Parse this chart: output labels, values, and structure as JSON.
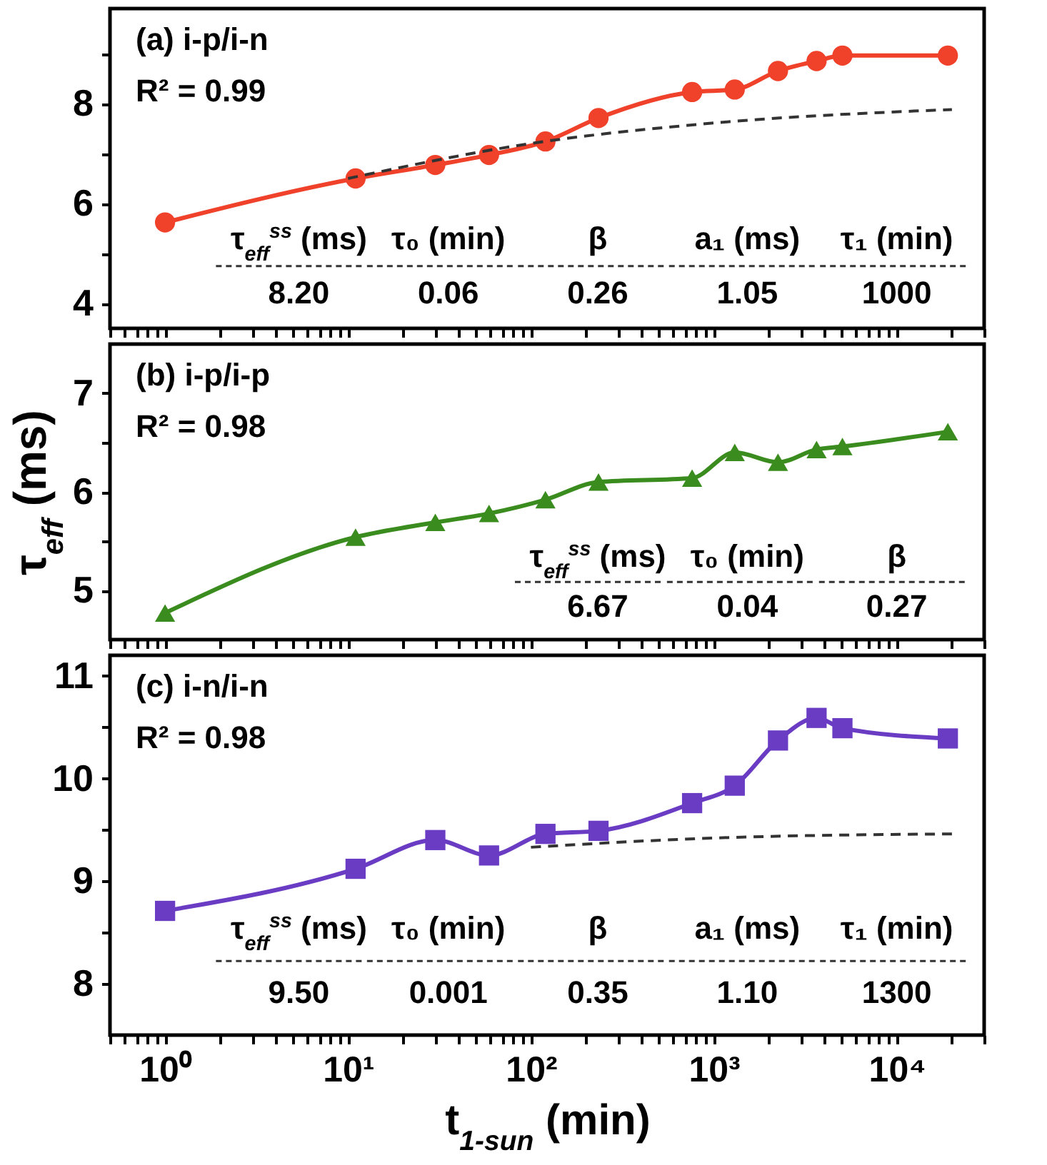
{
  "chart_data": [
    {
      "type": "line",
      "x": [
        1,
        11,
        30,
        59,
        120,
        234,
        760,
        1300,
        2240,
        3640,
        5040,
        19000
      ],
      "xlim": [
        0.5,
        30000
      ],
      "log": "x",
      "tick_labels": "y",
      "marker": "circle",
      "xticks": [
        {
          "value": 0.5,
          "label": null
        },
        {
          "value": 0.6,
          "label": null
        },
        {
          "value": 0.7,
          "label": null
        },
        {
          "value": 0.8,
          "label": null
        },
        {
          "value": 0.9,
          "label": null
        },
        {
          "value": 1,
          "label": null
        },
        {
          "value": 2,
          "label": null
        },
        {
          "value": 3,
          "label": null
        },
        {
          "value": 4,
          "label": null
        },
        {
          "value": 5,
          "label": null
        },
        {
          "value": 6,
          "label": null
        },
        {
          "value": 7,
          "label": null
        },
        {
          "value": 8,
          "label": null
        },
        {
          "value": 9,
          "label": null
        },
        {
          "value": 10,
          "label": null
        },
        {
          "value": 20,
          "label": null
        },
        {
          "value": 30,
          "label": null
        },
        {
          "value": 40,
          "label": null
        },
        {
          "value": 50,
          "label": null
        },
        {
          "value": 60,
          "label": null
        },
        {
          "value": 70,
          "label": null
        },
        {
          "value": 80,
          "label": null
        },
        {
          "value": 90,
          "label": null
        },
        {
          "value": 100,
          "label": null
        },
        {
          "value": 200,
          "label": null
        },
        {
          "value": 300,
          "label": null
        },
        {
          "value": 400,
          "label": null
        },
        {
          "value": 500,
          "label": null
        },
        {
          "value": 600,
          "label": null
        },
        {
          "value": 700,
          "label": null
        },
        {
          "value": 800,
          "label": null
        },
        {
          "value": 900,
          "label": null
        },
        {
          "value": 1000,
          "label": null
        },
        {
          "value": 2000,
          "label": null
        },
        {
          "value": 3000,
          "label": null
        },
        {
          "value": 4000,
          "label": null
        },
        {
          "value": 5000,
          "label": null
        },
        {
          "value": 6000,
          "label": null
        },
        {
          "value": 7000,
          "label": null
        },
        {
          "value": 8000,
          "label": null
        },
        {
          "value": 9000,
          "label": null
        },
        {
          "value": 10000,
          "label": null
        },
        {
          "value": 20000,
          "label": null
        },
        {
          "value": 30000,
          "label": null
        }
      ],
      "ylim": [
        3.5,
        9.9
      ],
      "yticks": [
        4,
        {
          "value": 5,
          "label": null
        },
        6,
        {
          "value": 7,
          "label": null
        },
        8,
        {
          "value": 9,
          "label": null
        }
      ],
      "series": [
        {
          "color": "#f0412a",
          "line_style": "solid",
          "values": [
            5.62,
            6.5,
            6.77,
            6.97,
            7.24,
            7.71,
            8.23,
            8.28,
            8.65,
            8.85,
            8.96,
            8.96
          ]
        },
        {
          "type": "line",
          "marker": "none",
          "line_style": "dashed",
          "color": "#333333",
          "x": [
            10,
            100,
            1000,
            20000
          ],
          "values": [
            6.5,
            7.2,
            7.61,
            7.88
          ]
        }
      ],
      "annotations": [
        "(a) i-p/i-n",
        "R² = 0.99",
        "τ$_{eff}$$^{ss}$ (ms)",
        "τ₀ (min)",
        "β",
        "a₁ (ms)",
        "τ₁ (min)",
        "8.20",
        "0.06",
        "0.26",
        "1.05",
        "1000"
      ]
    },
    {
      "type": "line",
      "x": [
        1,
        11,
        30,
        59,
        120,
        234,
        760,
        1300,
        2240,
        3640,
        5040,
        19000
      ],
      "xlim": [
        0.5,
        30000
      ],
      "log": "x",
      "tick_labels": "y",
      "marker": "triangle",
      "xticks": [
        {
          "value": 0.5,
          "label": null
        },
        {
          "value": 0.6,
          "label": null
        },
        {
          "value": 0.7,
          "label": null
        },
        {
          "value": 0.8,
          "label": null
        },
        {
          "value": 0.9,
          "label": null
        },
        {
          "value": 1,
          "label": null
        },
        {
          "value": 2,
          "label": null
        },
        {
          "value": 3,
          "label": null
        },
        {
          "value": 4,
          "label": null
        },
        {
          "value": 5,
          "label": null
        },
        {
          "value": 6,
          "label": null
        },
        {
          "value": 7,
          "label": null
        },
        {
          "value": 8,
          "label": null
        },
        {
          "value": 9,
          "label": null
        },
        {
          "value": 10,
          "label": null
        },
        {
          "value": 20,
          "label": null
        },
        {
          "value": 30,
          "label": null
        },
        {
          "value": 40,
          "label": null
        },
        {
          "value": 50,
          "label": null
        },
        {
          "value": 60,
          "label": null
        },
        {
          "value": 70,
          "label": null
        },
        {
          "value": 80,
          "label": null
        },
        {
          "value": 90,
          "label": null
        },
        {
          "value": 100,
          "label": null
        },
        {
          "value": 200,
          "label": null
        },
        {
          "value": 300,
          "label": null
        },
        {
          "value": 400,
          "label": null
        },
        {
          "value": 500,
          "label": null
        },
        {
          "value": 600,
          "label": null
        },
        {
          "value": 700,
          "label": null
        },
        {
          "value": 800,
          "label": null
        },
        {
          "value": 900,
          "label": null
        },
        {
          "value": 1000,
          "label": null
        },
        {
          "value": 2000,
          "label": null
        },
        {
          "value": 3000,
          "label": null
        },
        {
          "value": 4000,
          "label": null
        },
        {
          "value": 5000,
          "label": null
        },
        {
          "value": 6000,
          "label": null
        },
        {
          "value": 7000,
          "label": null
        },
        {
          "value": 8000,
          "label": null
        },
        {
          "value": 9000,
          "label": null
        },
        {
          "value": 10000,
          "label": null
        },
        {
          "value": 20000,
          "label": null
        },
        {
          "value": 30000,
          "label": null
        }
      ],
      "ylim": [
        4.5,
        7.5
      ],
      "yticks": [
        5,
        {
          "value": 5.5,
          "label": null
        },
        6,
        {
          "value": 6.5,
          "label": null
        },
        7
      ],
      "ylabel": "τ$_{eff}$ (ms)",
      "series": [
        {
          "color": "#3a8c1e",
          "line_style": "solid",
          "values": [
            4.77,
            5.54,
            5.69,
            5.78,
            5.92,
            6.1,
            6.14,
            6.4,
            6.3,
            6.43,
            6.46,
            6.61
          ]
        }
      ],
      "annotations": [
        "(b) i-p/i-p",
        "R² = 0.98",
        "τ$_{eff}$$^{ss}$ (ms)",
        "τ₀ (min)",
        "β",
        "6.67",
        "0.04",
        "0.27"
      ]
    },
    {
      "type": "line",
      "x": [
        1,
        11,
        30,
        59,
        120,
        234,
        760,
        1300,
        2240,
        3640,
        5040,
        19000
      ],
      "xlim": [
        0.5,
        30000
      ],
      "log": "x",
      "marker": "square",
      "xlabel": "t$_{1-sun}$ (min)",
      "xticks": [
        {
          "value": 0.5,
          "label": null
        },
        {
          "value": 0.6,
          "label": null
        },
        {
          "value": 0.7,
          "label": null
        },
        {
          "value": 0.8,
          "label": null
        },
        {
          "value": 0.9,
          "label": null
        },
        {
          "value": 1,
          "label": "10⁰"
        },
        {
          "value": 2,
          "label": null
        },
        {
          "value": 3,
          "label": null
        },
        {
          "value": 4,
          "label": null
        },
        {
          "value": 5,
          "label": null
        },
        {
          "value": 6,
          "label": null
        },
        {
          "value": 7,
          "label": null
        },
        {
          "value": 8,
          "label": null
        },
        {
          "value": 9,
          "label": null
        },
        {
          "value": 10,
          "label": "10¹"
        },
        {
          "value": 20,
          "label": null
        },
        {
          "value": 30,
          "label": null
        },
        {
          "value": 40,
          "label": null
        },
        {
          "value": 50,
          "label": null
        },
        {
          "value": 60,
          "label": null
        },
        {
          "value": 70,
          "label": null
        },
        {
          "value": 80,
          "label": null
        },
        {
          "value": 90,
          "label": null
        },
        {
          "value": 100,
          "label": "10²"
        },
        {
          "value": 200,
          "label": null
        },
        {
          "value": 300,
          "label": null
        },
        {
          "value": 400,
          "label": null
        },
        {
          "value": 500,
          "label": null
        },
        {
          "value": 600,
          "label": null
        },
        {
          "value": 700,
          "label": null
        },
        {
          "value": 800,
          "label": null
        },
        {
          "value": 900,
          "label": null
        },
        {
          "value": 1000,
          "label": "10³"
        },
        {
          "value": 2000,
          "label": null
        },
        {
          "value": 3000,
          "label": null
        },
        {
          "value": 4000,
          "label": null
        },
        {
          "value": 5000,
          "label": null
        },
        {
          "value": 6000,
          "label": null
        },
        {
          "value": 7000,
          "label": null
        },
        {
          "value": 8000,
          "label": null
        },
        {
          "value": 9000,
          "label": null
        },
        {
          "value": 10000,
          "label": "10⁴"
        },
        {
          "value": 20000,
          "label": null
        },
        {
          "value": 30000,
          "label": null
        }
      ],
      "ylim": [
        7.5,
        11.2
      ],
      "yticks": [
        8,
        {
          "value": 8.5,
          "label": null
        },
        9,
        {
          "value": 9.5,
          "label": null
        },
        10,
        {
          "value": 10.5,
          "label": null
        },
        11
      ],
      "series": [
        {
          "color": "#6a3cc4",
          "line_style": "solid",
          "values": [
            8.71,
            9.12,
            9.4,
            9.25,
            9.46,
            9.49,
            9.76,
            9.93,
            10.37,
            10.59,
            10.49,
            10.39
          ]
        },
        {
          "type": "line",
          "marker": "none",
          "line_style": "dashed",
          "color": "#333333",
          "x": [
            100,
            1000,
            20000
          ],
          "values": [
            9.33,
            9.42,
            9.46
          ]
        }
      ],
      "annotations": [
        "(c) i-n/i-n",
        "R² = 0.98",
        "τ$_{eff}$$^{ss}$ (ms)",
        "τ₀ (min)",
        "β",
        "a₁ (ms)",
        "τ₁ (min)",
        "9.50",
        "0.001",
        "0.35",
        "1.10",
        "1300"
      ]
    }
  ]
}
